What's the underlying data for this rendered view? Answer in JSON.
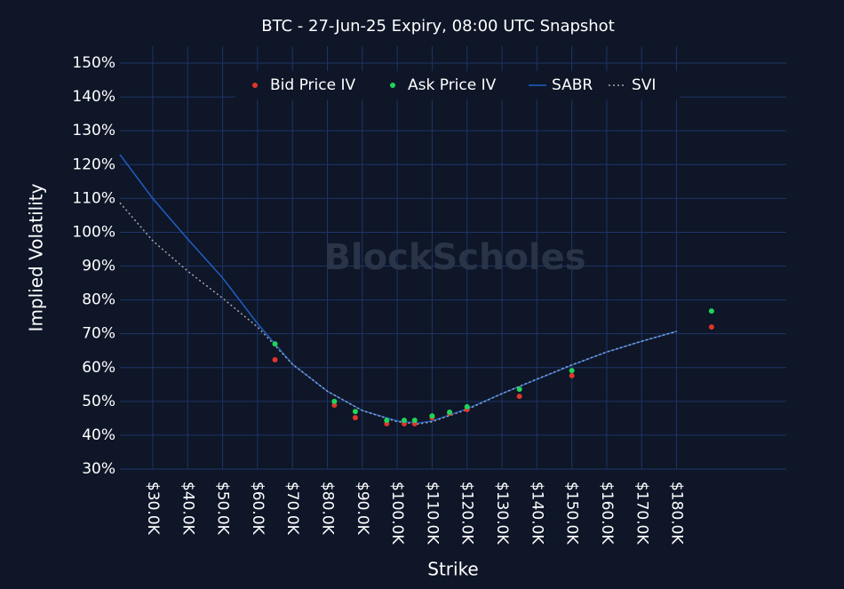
{
  "chart_data": {
    "type": "scatter-line",
    "title": "BTC - 27-Jun-25 Expiry, 08:00 UTC Snapshot",
    "watermark": "BlockScholes",
    "x_label": "Strike",
    "y_label": "Implied Volatility",
    "xlim": [
      20600,
      211400
    ],
    "ylim": [
      30,
      155
    ],
    "xticks": [
      {
        "value": 30000,
        "label": "$30.0K"
      },
      {
        "value": 40000,
        "label": "$40.0K"
      },
      {
        "value": 50000,
        "label": "$50.0K"
      },
      {
        "value": 60000,
        "label": "$60.0K"
      },
      {
        "value": 70000,
        "label": "$70.0K"
      },
      {
        "value": 80000,
        "label": "$80.0K"
      },
      {
        "value": 90000,
        "label": "$90.0K"
      },
      {
        "value": 100000,
        "label": "$100.0K"
      },
      {
        "value": 110000,
        "label": "$110.0K"
      },
      {
        "value": 120000,
        "label": "$120.0K"
      },
      {
        "value": 130000,
        "label": "$130.0K"
      },
      {
        "value": 140000,
        "label": "$140.0K"
      },
      {
        "value": 150000,
        "label": "$150.0K"
      },
      {
        "value": 160000,
        "label": "$160.0K"
      },
      {
        "value": 170000,
        "label": "$170.0K"
      },
      {
        "value": 180000,
        "label": "$180.0K"
      }
    ],
    "yticks": [
      {
        "value": 30,
        "label": "30%"
      },
      {
        "value": 40,
        "label": "40%"
      },
      {
        "value": 50,
        "label": "50%"
      },
      {
        "value": 60,
        "label": "60%"
      },
      {
        "value": 70,
        "label": "70%"
      },
      {
        "value": 80,
        "label": "80%"
      },
      {
        "value": 90,
        "label": "90%"
      },
      {
        "value": 100,
        "label": "100%"
      },
      {
        "value": 110,
        "label": "110%"
      },
      {
        "value": 120,
        "label": "120%"
      },
      {
        "value": 130,
        "label": "130%"
      },
      {
        "value": 140,
        "label": "140%"
      },
      {
        "value": 150,
        "label": "150%"
      }
    ],
    "grid": true,
    "legend": "top",
    "series": [
      {
        "name": "Bid Price IV",
        "kind": "markers",
        "color": "#e0352b",
        "x": [
          65000,
          82000,
          88000,
          97000,
          102000,
          105000,
          110000,
          115000,
          120000,
          135000,
          150000,
          190000
        ],
        "values": [
          62.3,
          48.9,
          45.2,
          43.4,
          43.4,
          43.4,
          45.2,
          46.5,
          47.6,
          51.5,
          57.6,
          72
        ]
      },
      {
        "name": "Ask Price IV",
        "kind": "markers",
        "color": "#22d35a",
        "x": [
          65000,
          82000,
          88000,
          97000,
          102000,
          105000,
          110000,
          115000,
          120000,
          135000,
          150000,
          190000
        ],
        "values": [
          67,
          50,
          47,
          44.4,
          44.4,
          44.4,
          45.7,
          46.8,
          48.4,
          53.6,
          59.1,
          76.7
        ]
      },
      {
        "name": "SABR",
        "kind": "line",
        "color": "#1f5fc4",
        "x": [
          20600,
          30000,
          40000,
          50000,
          60000,
          70000,
          80000,
          90000,
          100000,
          106000,
          110000,
          120000,
          130000,
          140000,
          150000,
          160000,
          170000,
          180000
        ],
        "values": [
          123,
          110,
          98,
          86.5,
          73,
          61,
          53,
          47.3,
          44.2,
          43.6,
          44.2,
          47.8,
          52.3,
          56.5,
          60.7,
          64.6,
          67.8,
          70.7
        ]
      },
      {
        "name": "SVI",
        "kind": "dotted",
        "color": "#a8a8a8",
        "x": [
          20600,
          30000,
          40000,
          50000,
          60000,
          70000,
          80000,
          90000,
          100000,
          106000,
          110000,
          120000,
          130000,
          140000,
          150000,
          160000,
          170000,
          180000
        ],
        "values": [
          108.7,
          97.5,
          88.5,
          80.5,
          72,
          61,
          53,
          47.3,
          44,
          43.3,
          44,
          47.6,
          52.3,
          56.6,
          60.8,
          64.6,
          67.8,
          70.7
        ]
      }
    ]
  }
}
